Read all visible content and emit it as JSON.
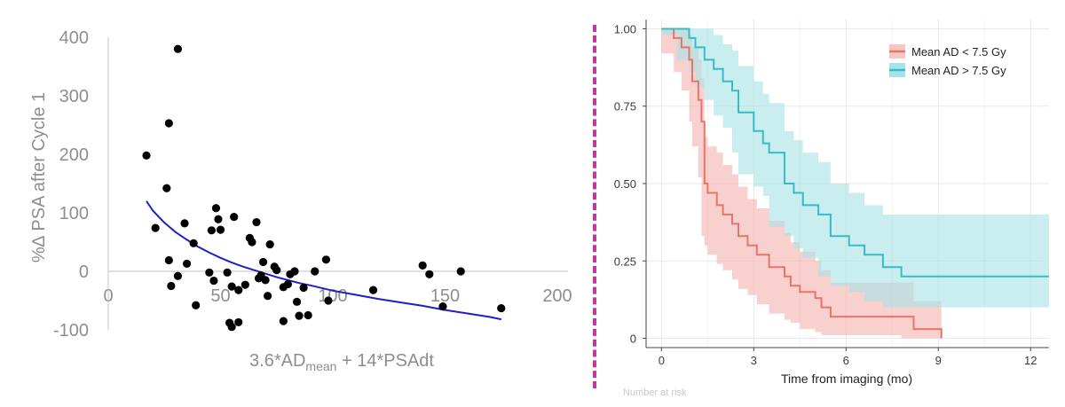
{
  "chart_data": [
    {
      "type": "scatter",
      "title": "",
      "xlabel": "3.6*AD",
      "xlabel_sub": "mean",
      "xlabel_suffix": " + 14*PSAdt",
      "ylabel": "%∆ PSA after Cycle 1",
      "xlim": [
        0,
        200
      ],
      "ylim": [
        -100,
        400
      ],
      "xticks": [
        "0",
        "50",
        "100",
        "150",
        "200"
      ],
      "yticks": [
        "-100",
        "0",
        "100",
        "200",
        "300",
        "400"
      ],
      "x_tick_values": [
        0,
        50,
        100,
        150,
        200
      ],
      "y_tick_values": [
        -100,
        0,
        100,
        200,
        300,
        400
      ],
      "grid": false,
      "point_color": "#000000",
      "fit_color": "#1f1fc9",
      "points": [
        [
          31,
          380
        ],
        [
          27,
          253
        ],
        [
          17,
          198
        ],
        [
          26,
          142
        ],
        [
          21,
          74
        ],
        [
          27,
          19
        ],
        [
          28,
          -25
        ],
        [
          31,
          -8
        ],
        [
          35,
          13
        ],
        [
          34,
          82
        ],
        [
          38,
          48
        ],
        [
          39,
          -58
        ],
        [
          45,
          -2
        ],
        [
          46,
          70
        ],
        [
          47,
          -16
        ],
        [
          48,
          108
        ],
        [
          49,
          89
        ],
        [
          50,
          71
        ],
        [
          53,
          -2
        ],
        [
          55,
          -26
        ],
        [
          56,
          93
        ],
        [
          55,
          -95
        ],
        [
          54,
          -88
        ],
        [
          58,
          -32
        ],
        [
          58,
          -87
        ],
        [
          61,
          -23
        ],
        [
          63,
          57
        ],
        [
          64,
          50
        ],
        [
          66,
          84
        ],
        [
          67,
          -12
        ],
        [
          68,
          -7
        ],
        [
          69,
          16
        ],
        [
          70,
          -15
        ],
        [
          71,
          -42
        ],
        [
          72,
          46
        ],
        [
          74,
          8
        ],
        [
          75,
          2
        ],
        [
          78,
          -27
        ],
        [
          78,
          -85
        ],
        [
          80,
          -22
        ],
        [
          81,
          -5
        ],
        [
          83,
          0
        ],
        [
          84,
          -52
        ],
        [
          85,
          -76
        ],
        [
          87,
          -28
        ],
        [
          89,
          -75
        ],
        [
          92,
          0
        ],
        [
          97,
          20
        ],
        [
          98,
          -50
        ],
        [
          118,
          -32
        ],
        [
          140,
          10
        ],
        [
          143,
          -5
        ],
        [
          149,
          -60
        ],
        [
          157,
          0
        ],
        [
          175,
          -63
        ]
      ],
      "fit_curve": [
        [
          17,
          120
        ],
        [
          20,
          103
        ],
        [
          25,
          83
        ],
        [
          30,
          67
        ],
        [
          35,
          54
        ],
        [
          40,
          42
        ],
        [
          45,
          32
        ],
        [
          50,
          23
        ],
        [
          55,
          15
        ],
        [
          60,
          8
        ],
        [
          65,
          2
        ],
        [
          70,
          -4
        ],
        [
          75,
          -10
        ],
        [
          80,
          -15
        ],
        [
          85,
          -20
        ],
        [
          90,
          -24
        ],
        [
          100,
          -33
        ],
        [
          110,
          -40
        ],
        [
          120,
          -47
        ],
        [
          130,
          -53
        ],
        [
          140,
          -59
        ],
        [
          150,
          -66
        ],
        [
          160,
          -72
        ],
        [
          170,
          -78
        ],
        [
          175,
          -82
        ]
      ]
    },
    {
      "type": "line",
      "title": "",
      "xlabel": "Time from imaging (mo)",
      "ylabel": "",
      "xlim": [
        -0.5,
        12.6
      ],
      "ylim": [
        -0.03,
        1.03
      ],
      "xticks": [
        "0",
        "3",
        "6",
        "9",
        "12"
      ],
      "yticks": [
        "0",
        "0.25",
        "0.50",
        "0.75",
        "1.00"
      ],
      "x_tick_values": [
        0,
        3,
        6,
        9,
        12
      ],
      "y_tick_values": [
        0,
        0.25,
        0.5,
        0.75,
        1.0
      ],
      "grid": true,
      "legend_position": "top-right",
      "series": [
        {
          "name": "Mean AD < 7.5 Gy",
          "color": "#e8746a",
          "band_color": "#f4b3ae",
          "step_x": [
            0,
            0.4,
            0.65,
            0.9,
            1.0,
            1.2,
            1.3,
            1.4,
            1.5,
            1.8,
            2.0,
            2.3,
            2.5,
            2.8,
            3.1,
            3.5,
            4.0,
            4.2,
            4.5,
            5.0,
            5.2,
            5.5,
            6.0,
            7.0,
            7.8,
            8.2,
            8.5,
            8.8,
            9.1
          ],
          "step_y": [
            1.0,
            0.97,
            0.94,
            0.9,
            0.83,
            0.77,
            0.7,
            0.5,
            0.47,
            0.43,
            0.4,
            0.37,
            0.33,
            0.3,
            0.27,
            0.23,
            0.2,
            0.17,
            0.15,
            0.13,
            0.1,
            0.07,
            0.07,
            0.07,
            0.07,
            0.03,
            0.03,
            0.03,
            0.0
          ],
          "lower": [
            1.0,
            0.92,
            0.86,
            0.8,
            0.7,
            0.62,
            0.52,
            0.33,
            0.3,
            0.27,
            0.24,
            0.22,
            0.19,
            0.16,
            0.14,
            0.11,
            0.08,
            0.06,
            0.05,
            0.03,
            0.02,
            0.01,
            0.01,
            0.01,
            0.01,
            0.0,
            0.0,
            0.0,
            0.0
          ],
          "upper": [
            1.0,
            1.0,
            1.0,
            0.98,
            0.94,
            0.9,
            0.84,
            0.65,
            0.62,
            0.6,
            0.56,
            0.53,
            0.49,
            0.45,
            0.42,
            0.38,
            0.34,
            0.31,
            0.28,
            0.25,
            0.22,
            0.18,
            0.18,
            0.18,
            0.18,
            0.12,
            0.12,
            0.12,
            0.0
          ]
        },
        {
          "name": "Mean AD > 7.5 Gy",
          "color": "#35bcc4",
          "band_color": "#a6e3e6",
          "step_x": [
            0,
            0.5,
            0.9,
            1.1,
            1.4,
            1.7,
            2.0,
            2.3,
            2.5,
            3.0,
            3.3,
            3.5,
            4.0,
            4.3,
            4.6,
            5.1,
            5.5,
            6.1,
            6.6,
            7.2,
            7.8,
            12.6
          ],
          "step_y": [
            1.0,
            1.0,
            0.97,
            0.94,
            0.9,
            0.87,
            0.83,
            0.8,
            0.73,
            0.67,
            0.63,
            0.6,
            0.5,
            0.47,
            0.43,
            0.4,
            0.33,
            0.3,
            0.27,
            0.23,
            0.2,
            0.2
          ],
          "lower": [
            1.0,
            0.98,
            0.9,
            0.86,
            0.81,
            0.77,
            0.72,
            0.68,
            0.6,
            0.53,
            0.49,
            0.46,
            0.36,
            0.33,
            0.29,
            0.26,
            0.2,
            0.17,
            0.15,
            0.12,
            0.1,
            0.1
          ],
          "upper": [
            1.0,
            1.0,
            1.0,
            1.0,
            1.0,
            0.98,
            0.95,
            0.93,
            0.88,
            0.83,
            0.79,
            0.76,
            0.67,
            0.64,
            0.6,
            0.57,
            0.5,
            0.47,
            0.43,
            0.4,
            0.4,
            0.4
          ]
        }
      ]
    }
  ],
  "right_chart_footer": "Number at risk"
}
